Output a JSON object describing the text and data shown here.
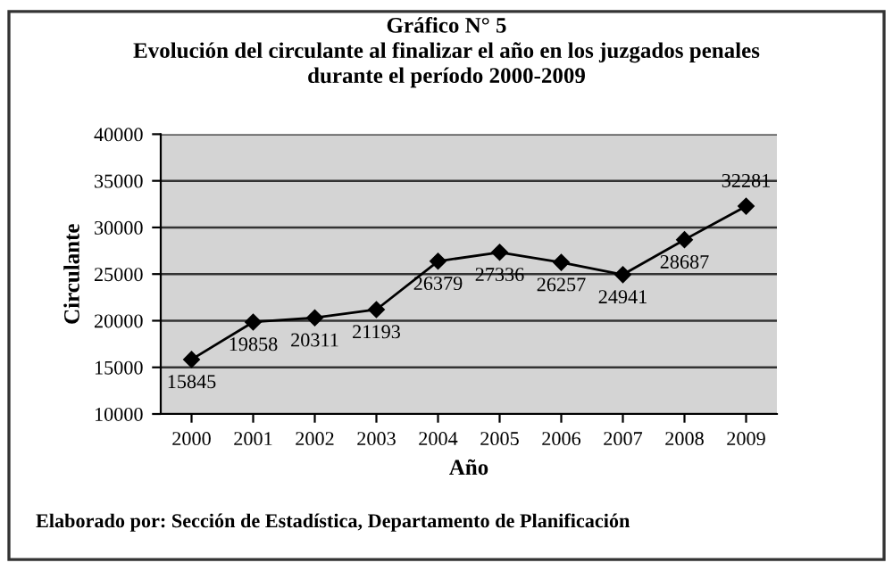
{
  "chart_data": {
    "type": "line",
    "title": "Gráfico N° 5\nEvolución del circulante al finalizar el año en los juzgados penales\ndurante el período 2000-2009",
    "xlabel": "Año",
    "ylabel": "Circulante",
    "categories": [
      "2000",
      "2001",
      "2002",
      "2003",
      "2004",
      "2005",
      "2006",
      "2007",
      "2008",
      "2009"
    ],
    "series": [
      {
        "color": "#000000",
        "values": [
          15845,
          19858,
          20311,
          21193,
          26379,
          27336,
          26257,
          24941,
          28687,
          32281
        ]
      }
    ],
    "ylim": [
      10000,
      40000
    ],
    "yticks": [
      10000,
      15000,
      20000,
      25000,
      30000,
      35000,
      40000
    ],
    "grid": "y",
    "marker": "diamond",
    "line_style": "solid",
    "data_labels": true,
    "annotations": [
      "Elaborado por: Sección de Estadística, Departamento de Planificación"
    ]
  }
}
